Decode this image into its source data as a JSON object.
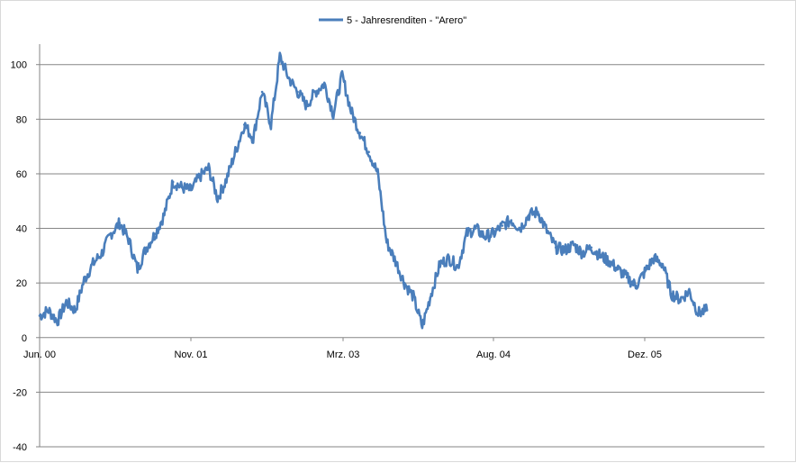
{
  "chart_data": {
    "type": "line",
    "title": "",
    "xlabel": "",
    "ylabel": "",
    "x_tick_labels": [
      "Jun. 00",
      "Nov. 01",
      "Mrz. 03",
      "Aug. 04",
      "Dez. 05"
    ],
    "y_tick_labels": [
      "-40",
      "-20",
      "0",
      "20",
      "40",
      "60",
      "80",
      "100"
    ],
    "ylim": [
      -40,
      100
    ],
    "grid": "horizontal",
    "legend_position": "top",
    "series": [
      {
        "name": "5 - Jahresrenditen - \"Arero\"",
        "color": "#4a7ebb",
        "x": [
          "2000-06",
          "2000-07",
          "2000-08",
          "2000-09",
          "2000-10",
          "2000-11",
          "2000-12",
          "2001-01",
          "2001-02",
          "2001-03",
          "2001-04",
          "2001-05",
          "2001-06",
          "2001-07",
          "2001-08",
          "2001-09",
          "2001-10",
          "2001-11",
          "2001-12",
          "2002-01",
          "2002-02",
          "2002-03",
          "2002-04",
          "2002-05",
          "2002-06",
          "2002-07",
          "2002-08",
          "2002-09",
          "2002-10",
          "2002-11",
          "2002-12",
          "2003-01",
          "2003-02",
          "2003-03",
          "2003-04",
          "2003-05",
          "2003-06",
          "2003-07",
          "2003-08",
          "2003-09",
          "2003-10",
          "2003-11",
          "2003-12",
          "2004-01",
          "2004-02",
          "2004-03",
          "2004-04",
          "2004-05",
          "2004-06",
          "2004-07",
          "2004-08",
          "2004-09",
          "2004-10",
          "2004-11",
          "2004-12",
          "2005-01",
          "2005-02",
          "2005-03",
          "2005-04",
          "2005-05",
          "2005-06",
          "2005-07",
          "2005-08",
          "2005-09",
          "2005-10",
          "2005-11",
          "2005-12",
          "2006-01",
          "2006-02",
          "2006-03",
          "2006-04",
          "2006-05",
          "2006-06",
          "2006-07",
          "2006-08",
          "2006-09"
        ],
        "values": [
          8,
          10,
          6,
          13,
          10,
          21,
          27,
          31,
          38,
          42,
          36,
          25,
          33,
          38,
          45,
          57,
          55,
          54,
          59,
          62,
          51,
          58,
          68,
          78,
          73,
          90,
          78,
          103,
          95,
          90,
          85,
          90,
          93,
          82,
          96,
          83,
          75,
          68,
          60,
          35,
          28,
          20,
          15,
          4,
          16,
          27,
          29,
          26,
          38,
          40,
          37,
          38,
          41,
          43,
          40,
          45,
          46,
          39,
          33,
          32,
          34,
          31,
          33,
          30,
          28,
          25,
          22,
          19,
          24,
          29,
          27,
          16,
          14,
          17,
          9,
          10
        ]
      }
    ]
  }
}
